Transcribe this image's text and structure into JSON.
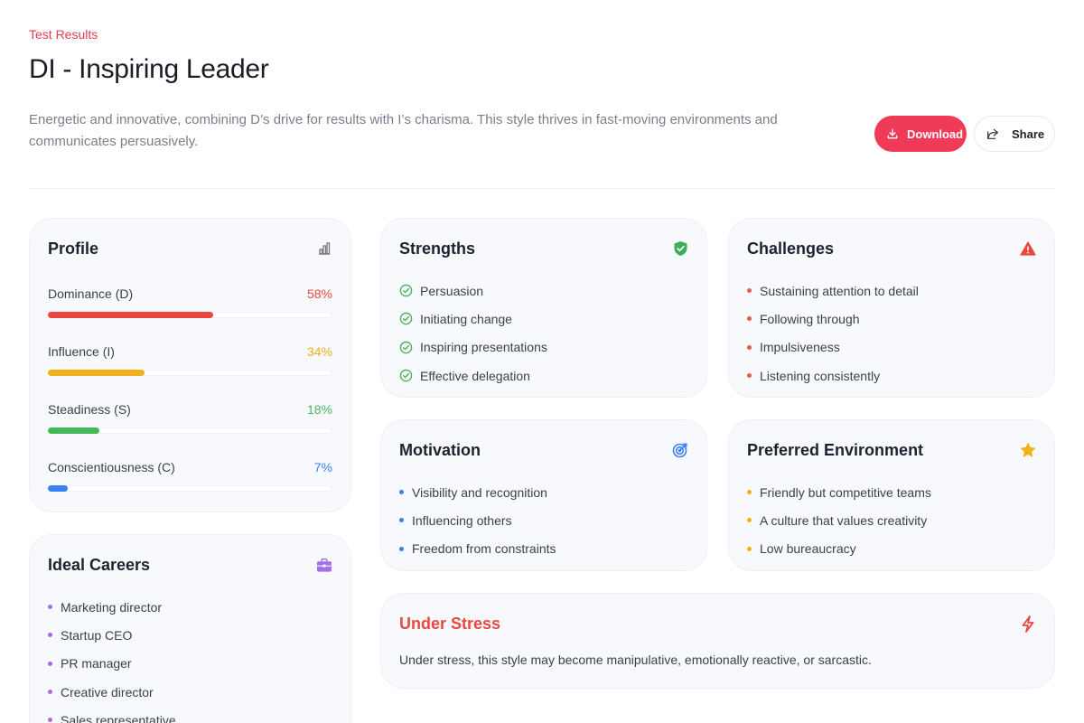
{
  "header": {
    "kicker": "Test Results",
    "title": "DI - Inspiring Leader",
    "description": "Energetic and innovative, combining D’s drive for results with I’s charisma. This style thrives in fast-moving environments and communicates persuasively.",
    "download_label": "Download",
    "share_label": "Share"
  },
  "profile": {
    "title": "Profile",
    "icon": "bar-chart-icon",
    "bars": [
      {
        "label": "Dominance (D)",
        "pct_text": "58%",
        "value": 58,
        "color": "#e8483f"
      },
      {
        "label": "Influence (I)",
        "pct_text": "34%",
        "value": 34,
        "color": "#f2b01b"
      },
      {
        "label": "Steadiness (S)",
        "pct_text": "18%",
        "value": 18,
        "color": "#46b85c"
      },
      {
        "label": "Conscientiousness (C)",
        "pct_text": "7%",
        "value": 7,
        "color": "#3b7ff0"
      }
    ]
  },
  "strengths": {
    "title": "Strengths",
    "icon": "shield-check-icon",
    "items": [
      "Persuasion",
      "Initiating change",
      "Inspiring presentations",
      "Effective delegation"
    ]
  },
  "challenges": {
    "title": "Challenges",
    "icon": "warning-icon",
    "items": [
      "Sustaining attention to detail",
      "Following through",
      "Impulsiveness",
      "Listening consistently"
    ]
  },
  "motivation": {
    "title": "Motivation",
    "icon": "target-icon",
    "items": [
      "Visibility and recognition",
      "Influencing others",
      "Freedom from constraints"
    ]
  },
  "environment": {
    "title": "Preferred Environment",
    "icon": "star-icon",
    "items": [
      "Friendly but competitive teams",
      "A culture that values creativity",
      "Low bureaucracy"
    ]
  },
  "careers": {
    "title": "Ideal Careers",
    "icon": "briefcase-icon",
    "items": [
      "Marketing director",
      "Startup CEO",
      "PR manager",
      "Creative director",
      "Sales representative"
    ]
  },
  "stress": {
    "title": "Under Stress",
    "icon": "lightning-icon",
    "text": "Under stress, this style may become manipulative, emotionally reactive, or sarcastic."
  },
  "colors": {
    "accent": "#ef3b57",
    "strength_green": "#3fae5a",
    "challenge_red": "#e8594f",
    "motivation_blue": "#3b82f0",
    "environment_yellow": "#f2b01b",
    "careers_purple": "#a66de8"
  }
}
